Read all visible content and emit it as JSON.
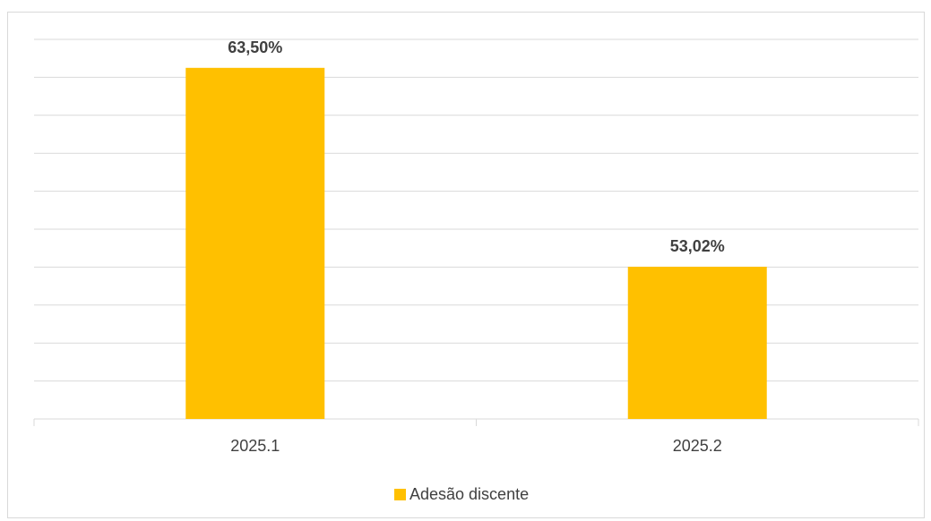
{
  "chart_data": {
    "type": "bar",
    "categories": [
      "2025.1",
      "2025.2"
    ],
    "series": [
      {
        "name": "Adesão discente",
        "values": [
          63.5,
          53.02
        ],
        "labels": [
          "63,50%",
          "53,02%"
        ],
        "color": "#FFC000"
      }
    ],
    "title": "",
    "xlabel": "",
    "ylabel": "",
    "ylim": [
      45,
      65
    ],
    "grid": true,
    "legend_position": "bottom",
    "y_tick_labels_visible": false
  }
}
